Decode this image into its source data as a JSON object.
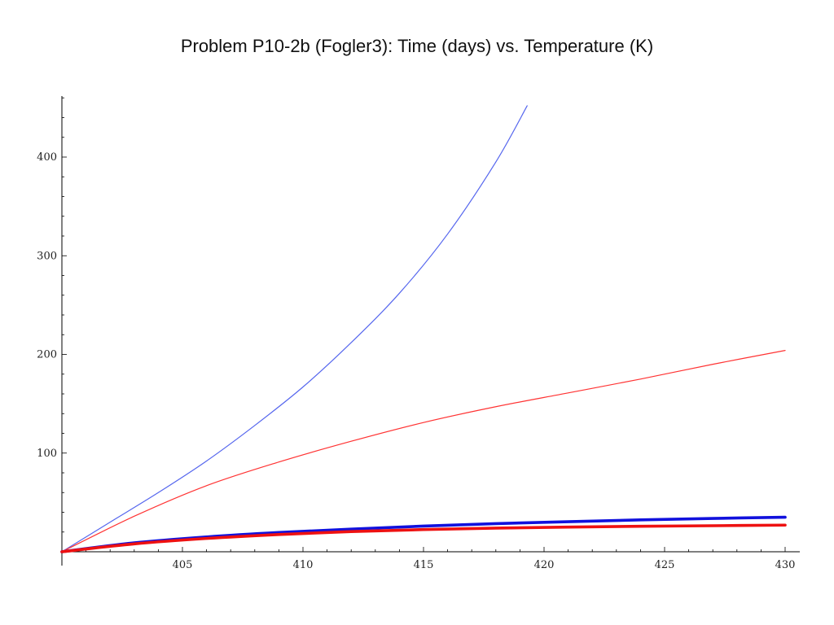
{
  "chart_data": {
    "type": "line",
    "title": "Problem P10-2b (Fogler3): Time (days) vs. Temperature (K)",
    "xlabel": "",
    "ylabel": "",
    "xlim": [
      400,
      430
    ],
    "ylim": [
      0,
      460
    ],
    "x_ticks": [
      405,
      410,
      415,
      420,
      425,
      430
    ],
    "y_ticks": [
      100,
      200,
      300,
      400
    ],
    "grid": false,
    "legend": "none",
    "series": [
      {
        "color": "#5566ee",
        "width": "thin",
        "x": [
          400,
          402,
          404,
          406,
          408,
          410,
          412,
          414,
          416,
          418,
          419.3
        ],
        "y": [
          0,
          30,
          60,
          92,
          128,
          167,
          212,
          262,
          322,
          395,
          452
        ]
      },
      {
        "color": "#ff3333",
        "width": "thin",
        "x": [
          400,
          403,
          406,
          409,
          412,
          415,
          418,
          421,
          424,
          427,
          430
        ],
        "y": [
          0,
          36,
          67,
          91,
          112,
          131,
          147,
          161,
          175,
          190,
          204
        ]
      },
      {
        "color": "#1111dd",
        "width": "thick",
        "x": [
          400,
          403,
          406,
          409,
          412,
          415,
          418,
          421,
          424,
          427,
          430
        ],
        "y": [
          0,
          9,
          15,
          19.5,
          23,
          26,
          28.5,
          30.5,
          32.3,
          33.8,
          35
        ]
      },
      {
        "color": "#ee1111",
        "width": "thick",
        "x": [
          400,
          403,
          406,
          409,
          412,
          415,
          418,
          421,
          424,
          427,
          430
        ],
        "y": [
          0,
          8,
          13.5,
          17.5,
          20.5,
          22.5,
          24,
          25,
          25.8,
          26.4,
          27
        ]
      }
    ]
  }
}
